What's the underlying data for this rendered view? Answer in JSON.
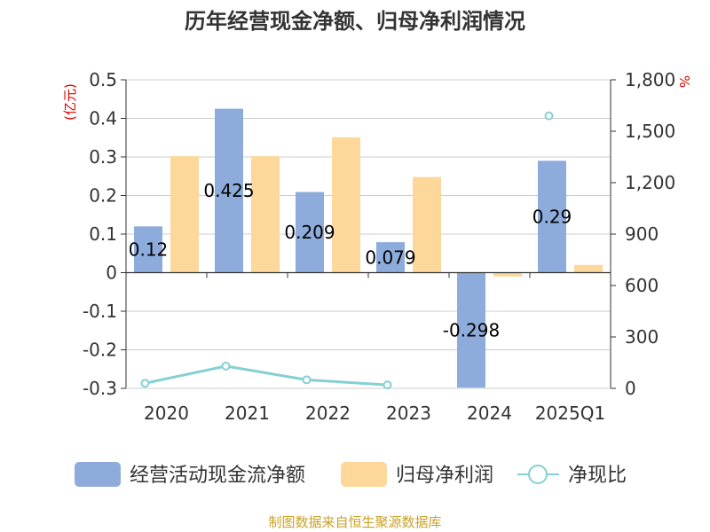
{
  "chart_data": {
    "type": "bar",
    "title": "历年经营现金净额、归母净利润情况",
    "source": "制图数据来自恒生聚源数据库",
    "left_unit": "(亿元)",
    "right_unit": "%",
    "categories": [
      "2020",
      "2021",
      "2022",
      "2023",
      "2024",
      "2025Q1"
    ],
    "y_left": {
      "min": -0.3,
      "max": 0.5,
      "ticks": [
        "0.5",
        "0.4",
        "0.3",
        "0.2",
        "0.1",
        "0",
        "-0.1",
        "-0.2",
        "-0.3"
      ],
      "tick_values": [
        0.5,
        0.4,
        0.3,
        0.2,
        0.1,
        0,
        -0.1,
        -0.2,
        -0.3
      ]
    },
    "y_right": {
      "min": 0,
      "max": 1800,
      "ticks": [
        "1,800",
        "1,500",
        "1,200",
        "900",
        "600",
        "300",
        "0"
      ],
      "tick_values": [
        1800,
        1500,
        1200,
        900,
        600,
        300,
        0
      ]
    },
    "series": [
      {
        "name": "经营活动现金流净额",
        "type": "bar",
        "axis": "left",
        "color": "#8eacdb",
        "values": [
          0.12,
          0.425,
          0.209,
          0.079,
          -0.298,
          0.29
        ],
        "labels": [
          "0.12",
          "0.425",
          "0.209",
          "0.079",
          "-0.298",
          "0.29"
        ]
      },
      {
        "name": "归母净利润",
        "type": "bar",
        "axis": "left",
        "color": "#fdd89a",
        "values": [
          0.302,
          0.302,
          0.351,
          0.248,
          -0.01,
          0.02
        ]
      },
      {
        "name": "净现比",
        "type": "line",
        "axis": "right",
        "color": "#84d0d4",
        "values": [
          30,
          130,
          50,
          20,
          null,
          1590
        ]
      }
    ],
    "legend_position": "bottom",
    "grid": true
  }
}
